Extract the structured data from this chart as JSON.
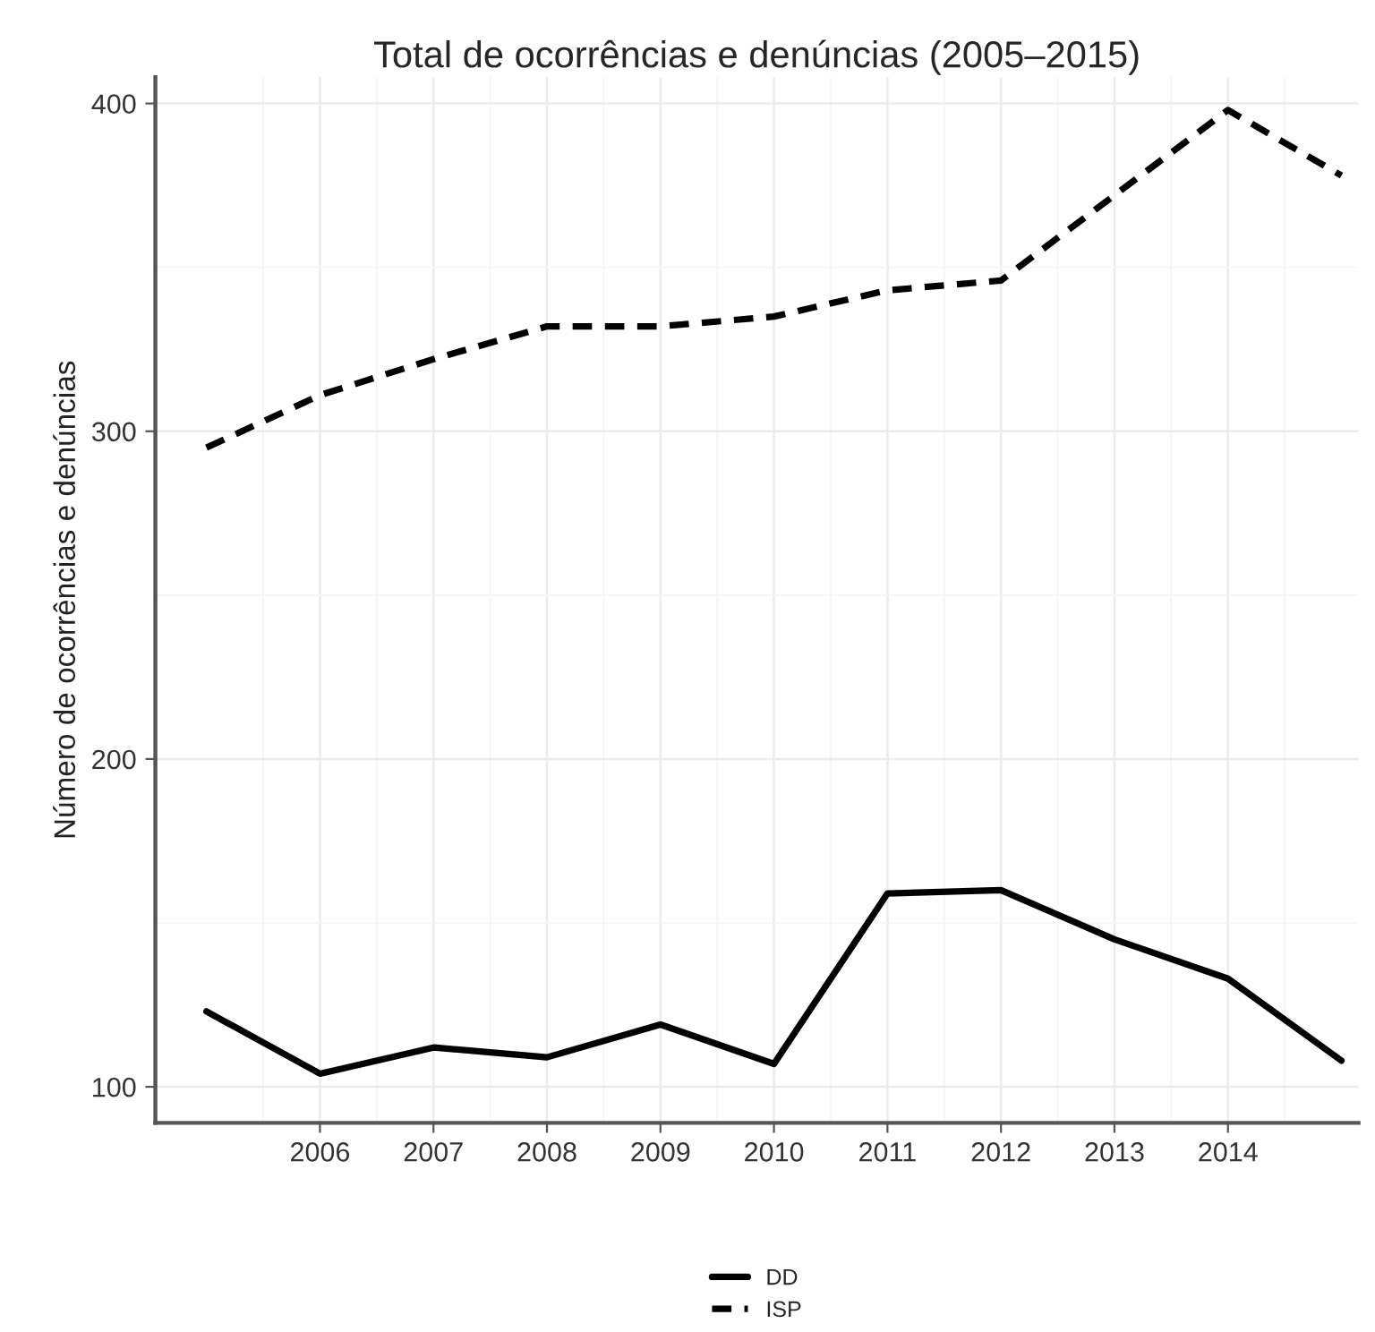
{
  "chart_data": {
    "type": "line",
    "title": "Total de ocorrências e denúncias (2005–2015)",
    "ylabel": "Número de ocorrências e denúncias",
    "x": [
      2005,
      2006,
      2007,
      2008,
      2009,
      2010,
      2011,
      2012,
      2013,
      2014,
      2015
    ],
    "series": [
      {
        "name": "DD",
        "color": "#000000",
        "line_style": "solid",
        "values": [
          123,
          104,
          112,
          109,
          119,
          107,
          159,
          160,
          145,
          133,
          108
        ]
      },
      {
        "name": "ISP",
        "color": "#000000",
        "line_style": "dashed",
        "values": [
          295,
          311,
          322,
          332,
          332,
          335,
          343,
          346,
          372,
          398,
          378
        ]
      }
    ],
    "xlim": [
      2004.55,
      2015.15
    ],
    "xticks": [
      2006,
      2007,
      2008,
      2009,
      2010,
      2011,
      2012,
      2013,
      2014
    ],
    "ylim": [
      89,
      408
    ],
    "yticks": [
      100,
      200,
      300,
      400
    ],
    "grid": true,
    "legend": "bottom",
    "marker": "none"
  }
}
